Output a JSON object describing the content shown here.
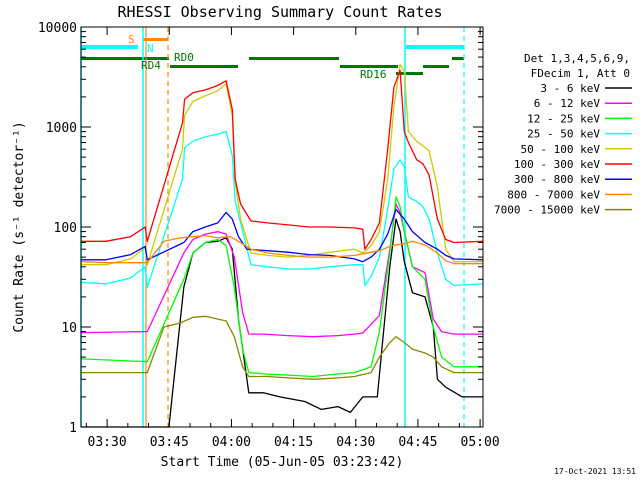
{
  "chart_data": {
    "type": "line",
    "title": "RHESSI Observing Summary Count Rates",
    "xlabel": "Start Time (05-Jun-05 03:23:42)",
    "ylabel": "Count Rate (s⁻¹ detector⁻¹)",
    "yscale": "log",
    "ylim": [
      1,
      10000
    ],
    "xlim_minutes": [
      0,
      97
    ],
    "x_ticks": [
      {
        "label": "03:30",
        "t": 6.3
      },
      {
        "label": "03:45",
        "t": 21.3
      },
      {
        "label": "04:00",
        "t": 36.3
      },
      {
        "label": "04:15",
        "t": 51.3
      },
      {
        "label": "04:30",
        "t": 66.3
      },
      {
        "label": "04:45",
        "t": 81.3
      },
      {
        "label": "05:00",
        "t": 96.3
      }
    ],
    "y_ticks": [
      {
        "label": "1",
        "v": 1
      },
      {
        "label": "10",
        "v": 10
      },
      {
        "label": "100",
        "v": 100
      },
      {
        "label": "1000",
        "v": 1000
      },
      {
        "label": "10000",
        "v": 10000
      }
    ],
    "legend_header": [
      "Det 1,3,4,5,6,9,",
      "FDecim 1, Att 0"
    ],
    "series": [
      {
        "name": "3 - 6 keV",
        "color": "#000000",
        "points": [
          [
            0,
            1
          ],
          [
            16,
            1
          ],
          [
            21.2,
            1
          ],
          [
            24.8,
            25
          ],
          [
            27,
            55
          ],
          [
            30,
            70
          ],
          [
            33,
            72
          ],
          [
            35,
            78
          ],
          [
            36.5,
            60
          ],
          [
            38,
            12
          ],
          [
            40.5,
            2.2
          ],
          [
            44,
            2.2
          ],
          [
            48,
            2
          ],
          [
            54,
            1.8
          ],
          [
            58,
            1.5
          ],
          [
            62,
            1.6
          ],
          [
            65,
            1.4
          ],
          [
            68,
            2
          ],
          [
            71.5,
            2
          ],
          [
            74.5,
            40
          ],
          [
            76,
            120
          ],
          [
            77,
            90
          ],
          [
            78,
            45
          ],
          [
            80,
            22
          ],
          [
            83,
            20
          ],
          [
            85,
            10
          ],
          [
            86,
            3
          ],
          [
            88,
            2.5
          ],
          [
            92,
            2
          ],
          [
            97,
            2
          ]
        ]
      },
      {
        "name": "6 - 12 keV",
        "color": "#ff00ff",
        "points": [
          [
            0,
            8.8
          ],
          [
            16,
            9
          ],
          [
            24.8,
            55
          ],
          [
            27,
            75
          ],
          [
            30,
            85
          ],
          [
            33,
            90
          ],
          [
            35,
            85
          ],
          [
            37,
            50
          ],
          [
            39,
            14
          ],
          [
            40.5,
            8.5
          ],
          [
            44,
            8.5
          ],
          [
            50,
            8.2
          ],
          [
            56,
            8
          ],
          [
            62,
            8.2
          ],
          [
            66,
            8.5
          ],
          [
            68,
            8.7
          ],
          [
            72,
            13
          ],
          [
            74.5,
            60
          ],
          [
            76,
            170
          ],
          [
            77,
            140
          ],
          [
            78,
            90
          ],
          [
            80,
            40
          ],
          [
            83,
            35
          ],
          [
            85,
            12
          ],
          [
            87,
            9
          ],
          [
            90,
            8.5
          ],
          [
            97,
            8.5
          ]
        ]
      },
      {
        "name": "12 - 25 keV",
        "color": "#00ff00",
        "points": [
          [
            0,
            4.8
          ],
          [
            16,
            4.5
          ],
          [
            24.8,
            30
          ],
          [
            27,
            55
          ],
          [
            30,
            70
          ],
          [
            33,
            75
          ],
          [
            35,
            65
          ],
          [
            37,
            25
          ],
          [
            39,
            6
          ],
          [
            40.5,
            3.5
          ],
          [
            44,
            3.4
          ],
          [
            50,
            3.3
          ],
          [
            56,
            3.2
          ],
          [
            62,
            3.4
          ],
          [
            66,
            3.5
          ],
          [
            70,
            4
          ],
          [
            72,
            9
          ],
          [
            74.5,
            55
          ],
          [
            76,
            200
          ],
          [
            77,
            160
          ],
          [
            78,
            90
          ],
          [
            80,
            40
          ],
          [
            83,
            30
          ],
          [
            85,
            10
          ],
          [
            87,
            5
          ],
          [
            90,
            4
          ],
          [
            97,
            4
          ]
        ]
      },
      {
        "name": "25 - 50 keV",
        "color": "#00ffff",
        "points": [
          [
            0,
            28
          ],
          [
            6,
            27
          ],
          [
            12,
            31
          ],
          [
            15.5,
            40
          ],
          [
            16,
            25
          ],
          [
            24.5,
            300
          ],
          [
            25,
            620
          ],
          [
            27,
            720
          ],
          [
            30,
            800
          ],
          [
            33,
            850
          ],
          [
            35,
            900
          ],
          [
            36.5,
            520
          ],
          [
            37.2,
            180
          ],
          [
            38.5,
            110
          ],
          [
            41,
            42
          ],
          [
            45,
            40
          ],
          [
            50,
            38
          ],
          [
            55,
            38
          ],
          [
            60,
            40
          ],
          [
            66,
            42
          ],
          [
            68,
            42
          ],
          [
            68.5,
            26
          ],
          [
            70,
            32
          ],
          [
            72,
            50
          ],
          [
            74,
            150
          ],
          [
            75.5,
            380
          ],
          [
            77,
            470
          ],
          [
            78,
            400
          ],
          [
            79,
            200
          ],
          [
            81,
            180
          ],
          [
            82.5,
            160
          ],
          [
            84,
            120
          ],
          [
            86,
            55
          ],
          [
            88,
            30
          ],
          [
            90,
            26
          ],
          [
            97,
            27
          ]
        ]
      },
      {
        "name": "50 - 100 keV",
        "color": "#cccc00",
        "points": [
          [
            0,
            42
          ],
          [
            6,
            42
          ],
          [
            12,
            48
          ],
          [
            15.5,
            62
          ],
          [
            16,
            42
          ],
          [
            24.5,
            600
          ],
          [
            25,
            1300
          ],
          [
            27,
            1800
          ],
          [
            30,
            2050
          ],
          [
            33,
            2300
          ],
          [
            35,
            2700
          ],
          [
            36.5,
            1300
          ],
          [
            37.2,
            280
          ],
          [
            38.5,
            120
          ],
          [
            41,
            55
          ],
          [
            45,
            52
          ],
          [
            50,
            50
          ],
          [
            55,
            52
          ],
          [
            60,
            56
          ],
          [
            66,
            60
          ],
          [
            68,
            55
          ],
          [
            70,
            65
          ],
          [
            72,
            90
          ],
          [
            74,
            300
          ],
          [
            75.5,
            1600
          ],
          [
            77,
            4200
          ],
          [
            78,
            3600
          ],
          [
            79,
            900
          ],
          [
            81,
            720
          ],
          [
            82.5,
            650
          ],
          [
            84,
            580
          ],
          [
            86,
            250
          ],
          [
            88,
            60
          ],
          [
            90,
            45
          ],
          [
            97,
            45
          ]
        ]
      },
      {
        "name": "100 - 300 keV",
        "color": "#ff0000",
        "points": [
          [
            0,
            72
          ],
          [
            6,
            72
          ],
          [
            12,
            80
          ],
          [
            15.5,
            100
          ],
          [
            16,
            72
          ],
          [
            24.5,
            1100
          ],
          [
            25,
            1900
          ],
          [
            27,
            2200
          ],
          [
            30,
            2350
          ],
          [
            33,
            2600
          ],
          [
            35,
            2900
          ],
          [
            36.5,
            1500
          ],
          [
            37.2,
            300
          ],
          [
            38.5,
            170
          ],
          [
            41,
            115
          ],
          [
            45,
            110
          ],
          [
            50,
            105
          ],
          [
            55,
            100
          ],
          [
            60,
            100
          ],
          [
            66,
            98
          ],
          [
            68,
            95
          ],
          [
            68.5,
            60
          ],
          [
            70,
            75
          ],
          [
            72,
            110
          ],
          [
            74,
            600
          ],
          [
            75.5,
            2500
          ],
          [
            77,
            3700
          ],
          [
            78,
            900
          ],
          [
            79,
            700
          ],
          [
            81,
            470
          ],
          [
            82.5,
            430
          ],
          [
            84,
            330
          ],
          [
            86,
            120
          ],
          [
            88,
            75
          ],
          [
            90,
            70
          ],
          [
            97,
            72
          ]
        ]
      },
      {
        "name": "300 - 800 keV",
        "color": "#0000ff",
        "points": [
          [
            0,
            47
          ],
          [
            6,
            47
          ],
          [
            12,
            53
          ],
          [
            15.5,
            64
          ],
          [
            16,
            47
          ],
          [
            24.8,
            70
          ],
          [
            27,
            90
          ],
          [
            30,
            100
          ],
          [
            33,
            110
          ],
          [
            35,
            140
          ],
          [
            36.5,
            120
          ],
          [
            38,
            80
          ],
          [
            40,
            60
          ],
          [
            45,
            58
          ],
          [
            50,
            56
          ],
          [
            55,
            53
          ],
          [
            60,
            52
          ],
          [
            66,
            48
          ],
          [
            68,
            45
          ],
          [
            70,
            50
          ],
          [
            72,
            60
          ],
          [
            74,
            85
          ],
          [
            76,
            150
          ],
          [
            78,
            120
          ],
          [
            80,
            90
          ],
          [
            83,
            70
          ],
          [
            86,
            60
          ],
          [
            88,
            52
          ],
          [
            90,
            48
          ],
          [
            97,
            47
          ]
        ]
      },
      {
        "name": "800 - 7000 keV",
        "color": "#ff8800",
        "points": [
          [
            0,
            45
          ],
          [
            6,
            44
          ],
          [
            12,
            44
          ],
          [
            16,
            44
          ],
          [
            20,
            72
          ],
          [
            24,
            78
          ],
          [
            27,
            80
          ],
          [
            30,
            82
          ],
          [
            33,
            78
          ],
          [
            36,
            80
          ],
          [
            38,
            72
          ],
          [
            41,
            60
          ],
          [
            45,
            55
          ],
          [
            50,
            52
          ],
          [
            55,
            50
          ],
          [
            60,
            50
          ],
          [
            66,
            52
          ],
          [
            68,
            54
          ],
          [
            72,
            58
          ],
          [
            75,
            65
          ],
          [
            78,
            68
          ],
          [
            80,
            72
          ],
          [
            83,
            66
          ],
          [
            86,
            55
          ],
          [
            88,
            46
          ],
          [
            90,
            43
          ],
          [
            97,
            43
          ]
        ]
      },
      {
        "name": "7000 - 15000 keV",
        "color": "#888800",
        "points": [
          [
            0,
            3.5
          ],
          [
            16,
            3.5
          ],
          [
            20,
            10
          ],
          [
            24,
            11
          ],
          [
            27,
            12.5
          ],
          [
            30,
            12.8
          ],
          [
            33,
            12
          ],
          [
            35,
            11.5
          ],
          [
            37,
            8
          ],
          [
            39,
            4
          ],
          [
            40.5,
            3.2
          ],
          [
            45,
            3.2
          ],
          [
            50,
            3.1
          ],
          [
            56,
            3
          ],
          [
            62,
            3.1
          ],
          [
            66,
            3.2
          ],
          [
            70,
            3.5
          ],
          [
            72,
            5
          ],
          [
            74.5,
            7
          ],
          [
            76,
            8
          ],
          [
            78,
            7
          ],
          [
            80,
            6
          ],
          [
            83,
            5.5
          ],
          [
            85,
            5
          ],
          [
            87,
            4
          ],
          [
            90,
            3.5
          ],
          [
            97,
            3.5
          ]
        ]
      }
    ],
    "annotations": {
      "flags": [
        {
          "label": "S",
          "color": "#ff8800"
        },
        {
          "label": "N",
          "color": "#00ffff"
        },
        {
          "label": "RD4",
          "color": "#007700"
        },
        {
          "label": "RD0",
          "color": "#007700"
        },
        {
          "label": "RD16",
          "color": "#007700"
        }
      ],
      "footer": "17-Oct-2021 13:51"
    }
  }
}
